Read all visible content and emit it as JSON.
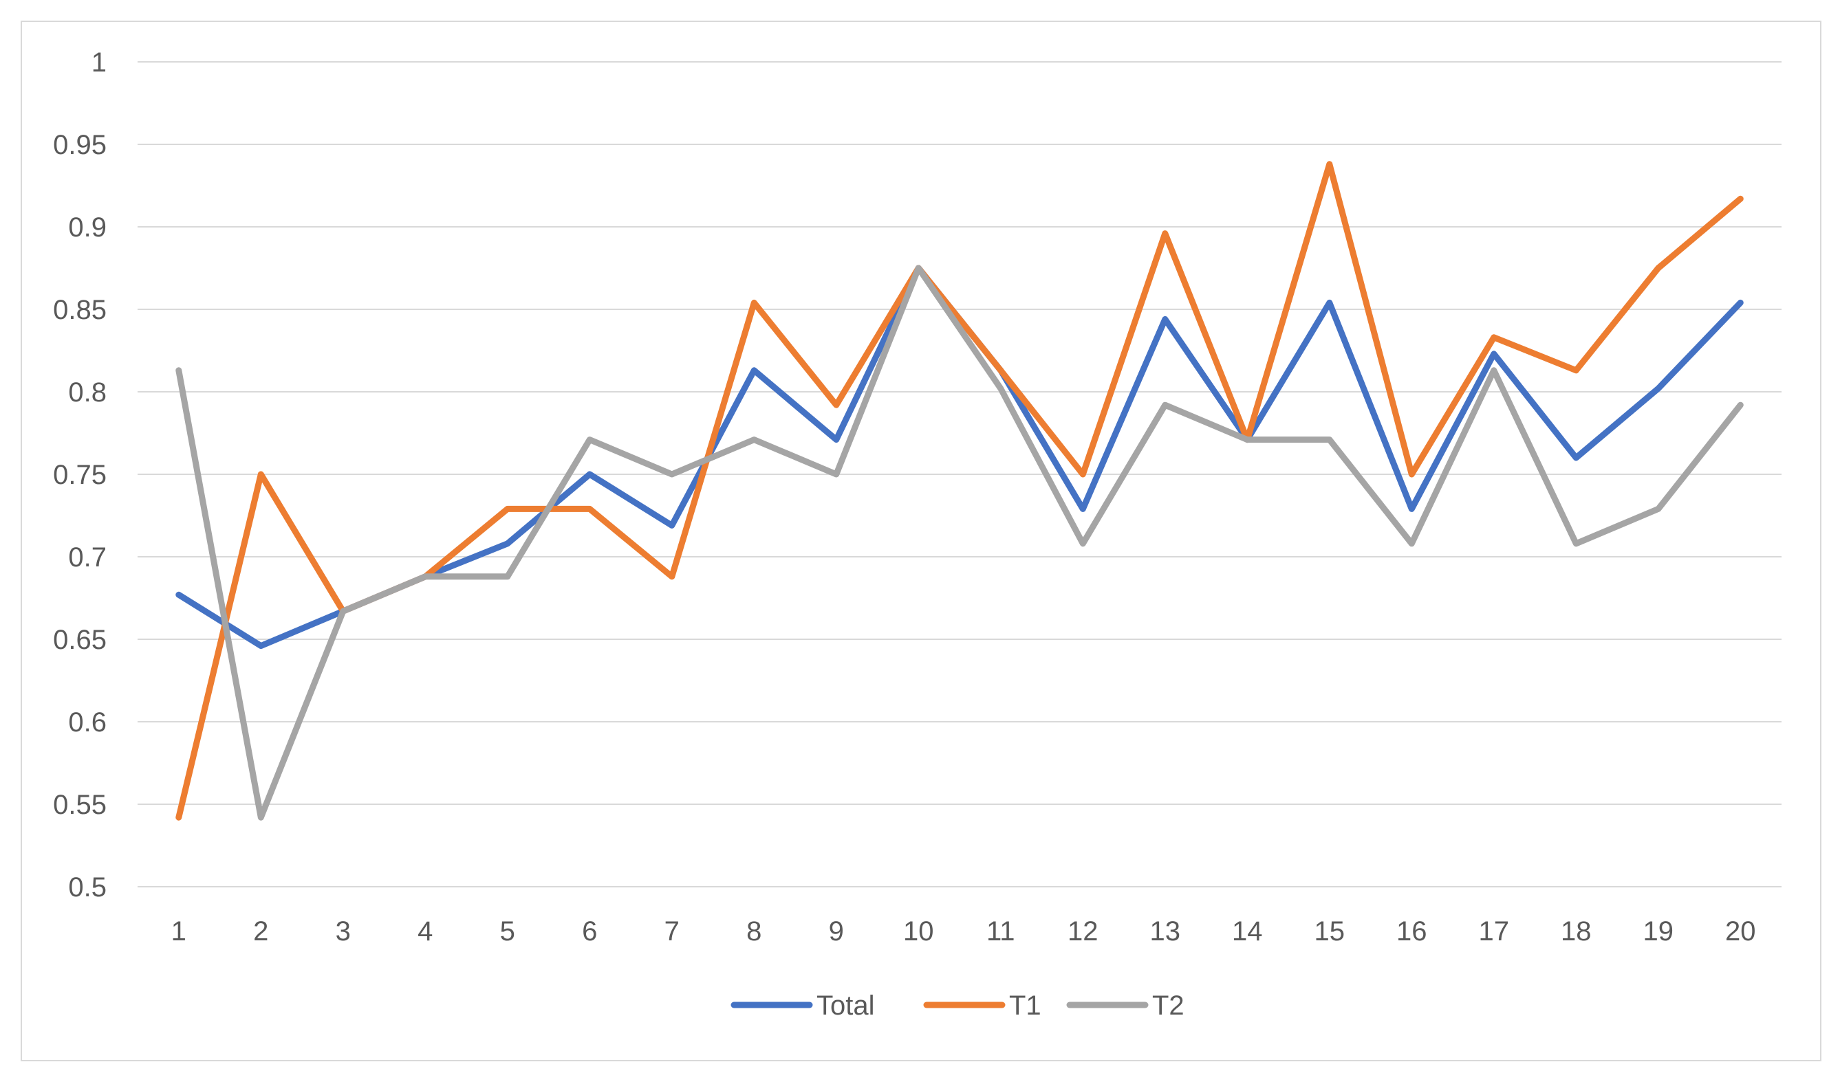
{
  "chart_data": {
    "type": "line",
    "categories": [
      "1",
      "2",
      "3",
      "4",
      "5",
      "6",
      "7",
      "8",
      "9",
      "10",
      "11",
      "12",
      "13",
      "14",
      "15",
      "16",
      "17",
      "18",
      "19",
      "20"
    ],
    "ylim": [
      0.5,
      1
    ],
    "yticks": [
      "0.5",
      "0.55",
      "0.6",
      "0.65",
      "0.7",
      "0.75",
      "0.8",
      "0.85",
      "0.9",
      "0.95",
      "1"
    ],
    "grid": true,
    "legend_position": "bottom",
    "title": "",
    "xlabel": "",
    "ylabel": "",
    "series": [
      {
        "name": "Total",
        "color": "#4472c4",
        "values": [
          0.677,
          0.646,
          0.667,
          0.688,
          0.708,
          0.75,
          0.719,
          0.813,
          0.771,
          0.875,
          0.813,
          0.729,
          0.844,
          0.771,
          0.854,
          0.729,
          0.823,
          0.76,
          0.802,
          0.854
        ]
      },
      {
        "name": "T1",
        "color": "#ed7d31",
        "values": [
          0.542,
          0.75,
          0.667,
          0.688,
          0.729,
          0.729,
          0.688,
          0.854,
          0.792,
          0.875,
          0.813,
          0.75,
          0.896,
          0.771,
          0.938,
          0.75,
          0.833,
          0.813,
          0.875,
          0.917
        ]
      },
      {
        "name": "T2",
        "color": "#a5a5a5",
        "values": [
          0.813,
          0.542,
          0.667,
          0.688,
          0.688,
          0.771,
          0.75,
          0.771,
          0.75,
          0.875,
          0.802,
          0.708,
          0.792,
          0.771,
          0.771,
          0.708,
          0.813,
          0.708,
          0.729,
          0.792
        ]
      }
    ]
  }
}
